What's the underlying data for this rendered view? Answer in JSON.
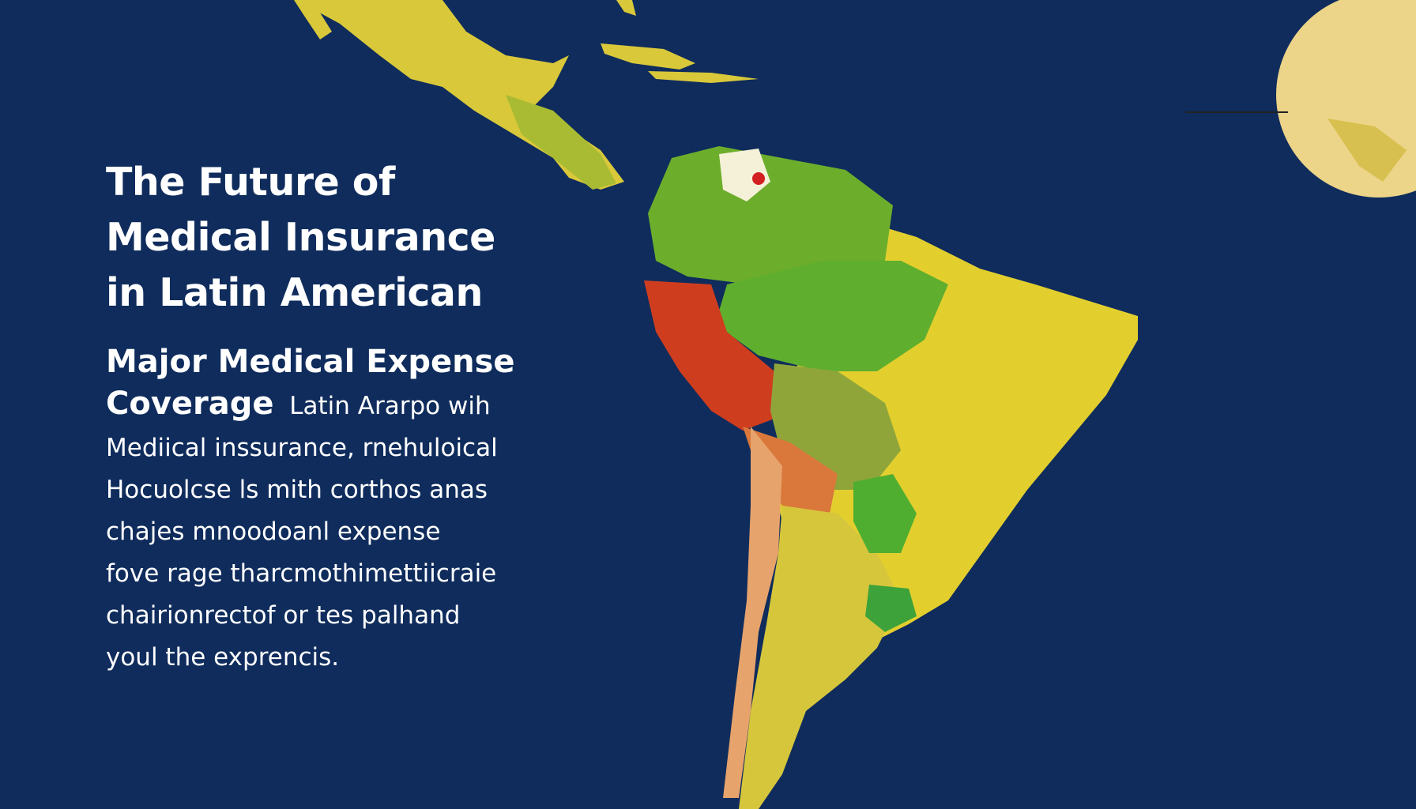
{
  "title_lines": [
    "The Future of",
    "Medical Insurance",
    "in Latin American"
  ],
  "subtitle_lines": [
    "Major Medical Expense",
    "Coverage"
  ],
  "body_first": "Latin Ararpo wih",
  "body_lines": [
    "Mediical inssurance, rnehuloical",
    "Hocuolcse ls  mith corthos anas",
    "chajes mnoodoanl expense",
    "fove rage tharcmothimettiicraie",
    "chairionrectof or tes palhand",
    "youl the exprencis."
  ],
  "colors": {
    "background": "#0f2c5c",
    "yellow": "#e2cf2e",
    "green": "#5fae2e",
    "red": "#cf3d1f",
    "orange": "#d9783a",
    "olive": "#8fa53a"
  }
}
